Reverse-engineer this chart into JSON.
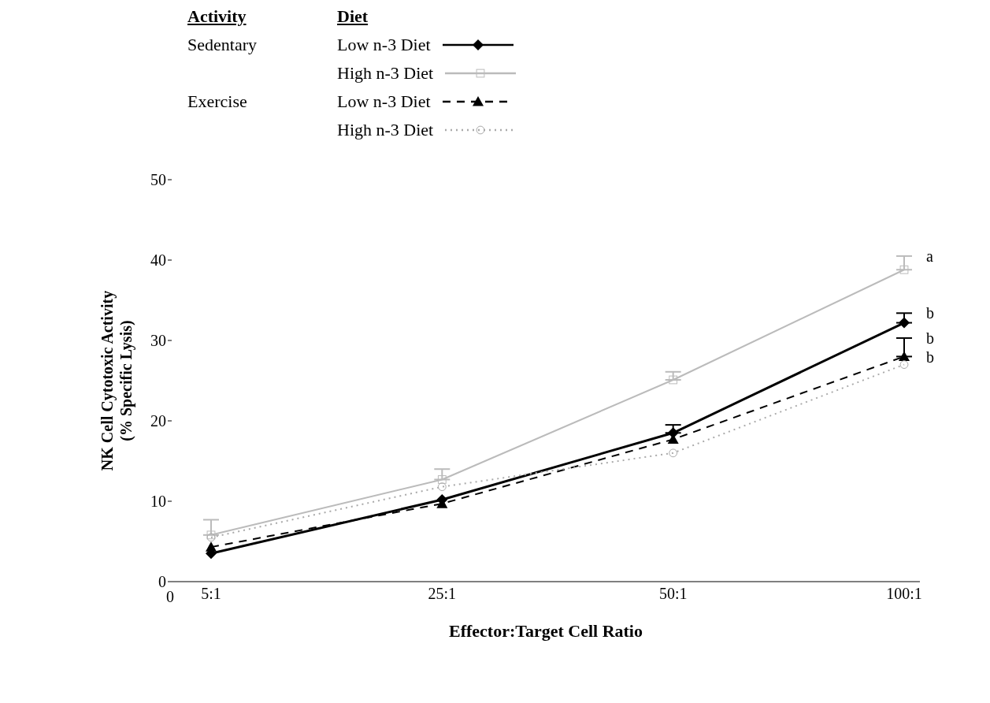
{
  "chart_data": {
    "type": "line",
    "xlabel": "Effector:Target Cell Ratio",
    "ylabel": "NK Cell Cytotoxic Activity\n(% Specific Lysis)",
    "categories": [
      "5:1",
      "25:1",
      "50:1",
      "100:1"
    ],
    "ylim": [
      0,
      50
    ],
    "yticks": [
      0,
      10,
      20,
      30,
      40,
      50
    ],
    "grid": false,
    "legend": "top",
    "series": [
      {
        "name": "Low n-3 Diet",
        "color": "#000000",
        "values": [
          3.5,
          10.2,
          18.5,
          32.2
        ],
        "errors": [
          null,
          null,
          [
            18.5,
            19.5
          ],
          [
            32.2,
            33.4
          ]
        ],
        "marker": "diamond",
        "line_style": "solid"
      },
      {
        "name": "High n-3 Diet",
        "color": "#bbbbbb",
        "values": [
          5.8,
          12.7,
          25.1,
          38.8
        ],
        "errors": [
          [
            5.8,
            7.7
          ],
          [
            12.7,
            14.0
          ],
          [
            25.1,
            26.1
          ],
          [
            38.8,
            40.5
          ]
        ],
        "marker": "square",
        "line_style": "solid"
      },
      {
        "name": "Low n-3 Diet",
        "color": "#000000",
        "values": [
          4.3,
          9.7,
          17.7,
          28.0
        ],
        "errors": [
          null,
          null,
          null,
          [
            28.0,
            30.3
          ]
        ],
        "marker": "triangle",
        "line_style": "dashed"
      },
      {
        "name": "High n-3 Diet",
        "color": "#aaaaaa",
        "values": [
          5.5,
          11.8,
          16.0,
          27.0
        ],
        "marker": "circle",
        "line_style": "dotted"
      }
    ],
    "annotations": [
      "Activity",
      "Diet",
      "Sedentary",
      "Exercise",
      "0",
      {
        "text": "a",
        "x": "100:1",
        "y": 40.5
      },
      {
        "text": "b",
        "x": "100:1",
        "y": 33.4
      },
      {
        "text": "b",
        "x": "100:1",
        "y": 30.3
      },
      {
        "text": "b",
        "x": "100:1",
        "y": 28.0
      }
    ]
  }
}
